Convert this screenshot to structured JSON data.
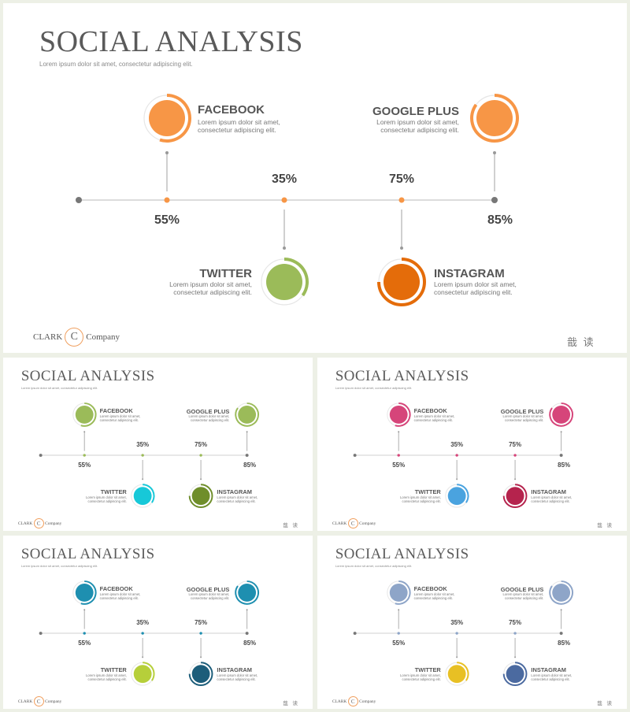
{
  "slide": {
    "title": "SOCIAL ANALYSIS",
    "subtitle": "Lorem ipsum dolor sit amet, consectetur adipiscing elit.",
    "brand_left": "CLARK",
    "brand_logo": "C",
    "brand_right": "Company",
    "corner_text": "戠 读",
    "items": [
      {
        "label": "FACEBOOK",
        "desc1": "Lorem ipsum dolor sit amet,",
        "desc2": "consectetur adipiscing elit.",
        "percent": "55%",
        "progress": 0.55
      },
      {
        "label": "TWITTER",
        "desc1": "Lorem ipsum dolor sit amet,",
        "desc2": "consectetur adipiscing elit.",
        "percent": "35%",
        "progress": 0.35
      },
      {
        "label": "INSTAGRAM",
        "desc1": "Lorem ipsum dolor sit amet,",
        "desc2": "consectetur adipiscing elit.",
        "percent": "75%",
        "progress": 0.75
      },
      {
        "label": "GOOGLE PLUS",
        "desc1": "Lorem ipsum dolor sit amet,",
        "desc2": "consectetur adipiscing elit.",
        "percent": "85%",
        "progress": 0.85
      }
    ]
  },
  "themes": [
    {
      "facebook": "#f79646",
      "twitter": "#9bbb59",
      "instagram": "#e46c0a",
      "google": "#f79646",
      "dot": "#f79646"
    },
    {
      "facebook": "#9bbb59",
      "twitter": "#17c8d8",
      "instagram": "#6f8e2b",
      "google": "#9bbb59",
      "dot": "#9bbb59"
    },
    {
      "facebook": "#d6457a",
      "twitter": "#4aa3df",
      "instagram": "#b5234d",
      "google": "#d6457a",
      "dot": "#d6457a"
    },
    {
      "facebook": "#1e8fb0",
      "twitter": "#b6cf3a",
      "instagram": "#1c5d7a",
      "google": "#1e8fb0",
      "dot": "#1e8fb0"
    },
    {
      "facebook": "#8ea5c8",
      "twitter": "#e8c024",
      "instagram": "#4b6aa0",
      "google": "#8ea5c8",
      "dot": "#8ea5c8"
    }
  ]
}
